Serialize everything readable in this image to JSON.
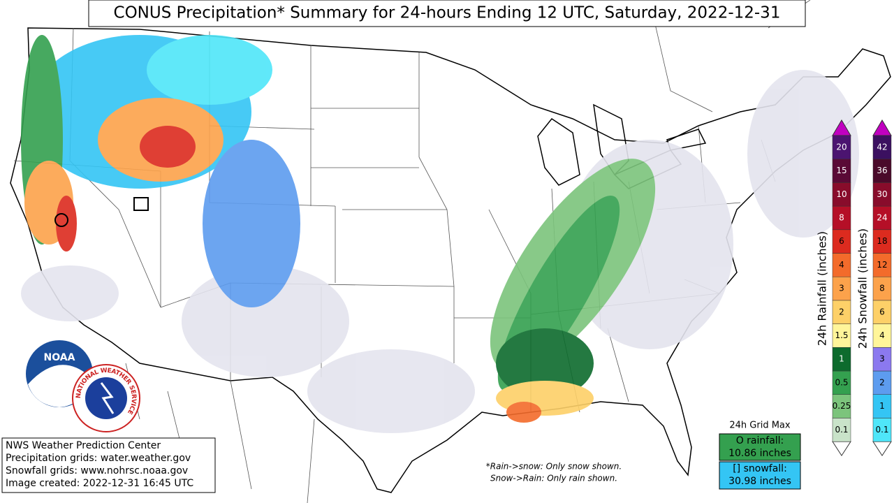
{
  "title": "CONUS Precipitation* Summary for 24-hours Ending 12 UTC, Saturday, 2022-12-31",
  "credits": [
    "NWS Weather Prediction Center",
    "Precipitation grids: water.weather.gov",
    "Snowfall grids: www.nohrsc.noaa.gov",
    "Image created: 2022-12-31 16:45 UTC"
  ],
  "notes": [
    "*Rain->snow: Only snow shown.",
    "Snow->Rain: Only rain shown."
  ],
  "grid_max": {
    "title": "24h Grid Max",
    "rainfall": [
      "O rainfall:",
      "10.86 inches"
    ],
    "snowfall": [
      "[] snowfall:",
      "30.98 inches"
    ]
  },
  "logos": {
    "noaa": "NOAA",
    "nws": "NATIONAL WEATHER SERVICE"
  },
  "rain_legend": {
    "label": "24h Rainfall (inches)",
    "levels": [
      "0.1",
      "0.25",
      "0.5",
      "1",
      "1.5",
      "2",
      "3",
      "4",
      "6",
      "8",
      "10",
      "15",
      "20"
    ],
    "colors": [
      "#c9e3c9",
      "#7cc47c",
      "#34a04f",
      "#0d6b2d",
      "#fff59a",
      "#fdd068",
      "#fca24b",
      "#f36b2b",
      "#dc2b1f",
      "#b50f27",
      "#880c2b",
      "#5a0a36",
      "#4b1470"
    ]
  },
  "snow_legend": {
    "label": "24h Snowfall (inches)",
    "levels": [
      "0.1",
      "1",
      "2",
      "3",
      "4",
      "6",
      "8",
      "12",
      "18",
      "24",
      "30",
      "36",
      "42"
    ],
    "colors": [
      "#4fe6f9",
      "#34c5f4",
      "#5d9cef",
      "#8b79ef",
      "#fff59a",
      "#fdd068",
      "#fca24b",
      "#f36b2b",
      "#dc2b1f",
      "#b50f27",
      "#880c2b",
      "#4a0a2a",
      "#3b1060"
    ]
  }
}
